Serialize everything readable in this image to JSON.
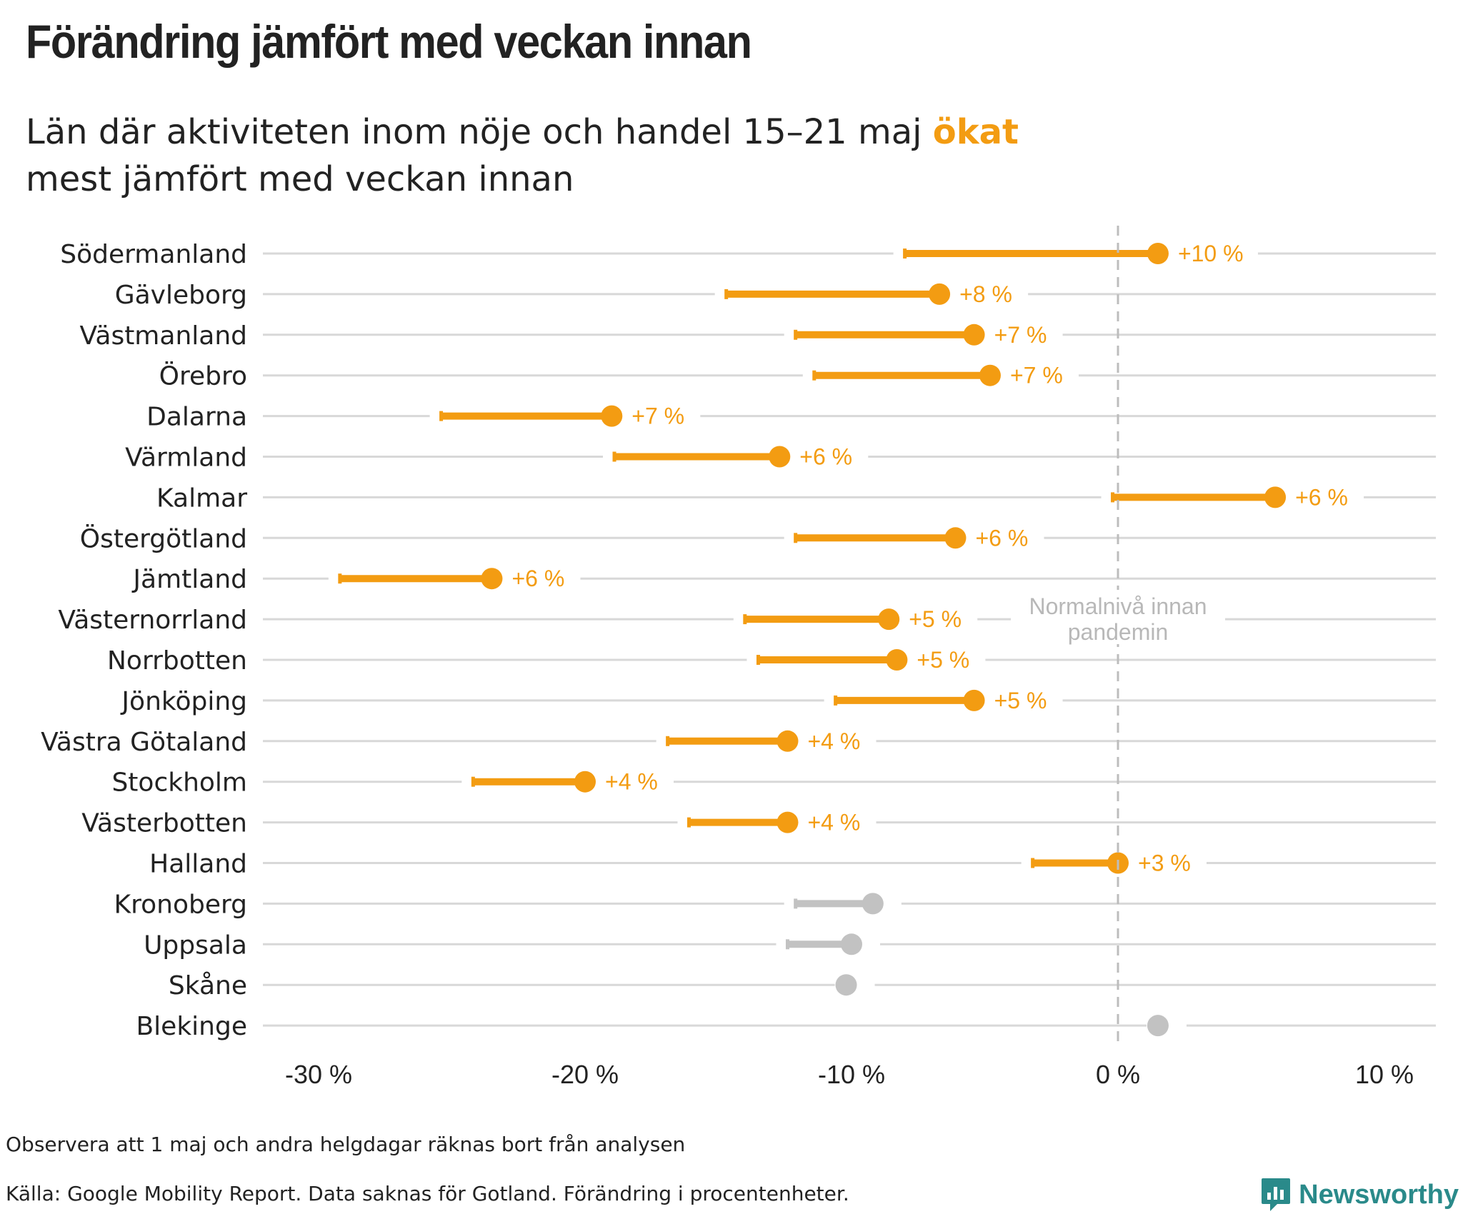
{
  "title": "Förändring jämfört med veckan innan",
  "subtitle": {
    "line1_prefix": "Län där aktiviteten inom nöje och handel 15–21 maj ",
    "highlight": "ökat",
    "line2": "mest jämfört med veckan innan"
  },
  "notes": {
    "note1": "Observera att 1 maj och andra helgdagar räknas bort från analysen",
    "source": "Källa: Google Mobility Report. Data saknas för Gotland. Förändring i procentenheter."
  },
  "brand": {
    "name": "Newsworthy",
    "icon": "newsworthy-logo-icon"
  },
  "colors": {
    "increase": "#f39c12",
    "neutral": "#c2c2c2",
    "grid": "#d8d8d8",
    "text": "#222222",
    "brand": "#2a8a8a"
  },
  "chart_data": {
    "type": "dumbbell",
    "x_axis": {
      "range": [
        -31,
        12
      ],
      "ticks": [
        -30,
        -20,
        -10,
        0,
        10
      ],
      "tick_labels": [
        "-30 %",
        "-20 %",
        "-10 %",
        "0 %",
        "10 %"
      ]
    },
    "reference_line": {
      "x": 0,
      "label_line1": "Normalnivå innan",
      "label_line2": "pandemin"
    },
    "rows": [
      {
        "name": "Södermanland",
        "from": -8.0,
        "to": 1.5,
        "label": "+10 %",
        "highlight": true
      },
      {
        "name": "Gävleborg",
        "from": -14.7,
        "to": -6.7,
        "label": "+8 %",
        "highlight": true
      },
      {
        "name": "Västmanland",
        "from": -12.1,
        "to": -5.4,
        "label": "+7 %",
        "highlight": true
      },
      {
        "name": "Örebro",
        "from": -11.4,
        "to": -4.8,
        "label": "+7 %",
        "highlight": true
      },
      {
        "name": "Dalarna",
        "from": -25.4,
        "to": -19.0,
        "label": "+7 %",
        "highlight": true
      },
      {
        "name": "Värmland",
        "from": -18.9,
        "to": -12.7,
        "label": "+6 %",
        "highlight": true
      },
      {
        "name": "Kalmar",
        "from": -0.2,
        "to": 5.9,
        "label": "+6 %",
        "highlight": true
      },
      {
        "name": "Östergötland",
        "from": -12.1,
        "to": -6.1,
        "label": "+6 %",
        "highlight": true
      },
      {
        "name": "Jämtland",
        "from": -29.2,
        "to": -23.5,
        "label": "+6 %",
        "highlight": true
      },
      {
        "name": "Västernorrland",
        "from": -14.0,
        "to": -8.6,
        "label": "+5 %",
        "highlight": true
      },
      {
        "name": "Norrbotten",
        "from": -13.5,
        "to": -8.3,
        "label": "+5 %",
        "highlight": true
      },
      {
        "name": "Jönköping",
        "from": -10.6,
        "to": -5.4,
        "label": "+5 %",
        "highlight": true
      },
      {
        "name": "Västra Götaland",
        "from": -16.9,
        "to": -12.4,
        "label": "+4 %",
        "highlight": true
      },
      {
        "name": "Stockholm",
        "from": -24.2,
        "to": -20.0,
        "label": "+4 %",
        "highlight": true
      },
      {
        "name": "Västerbotten",
        "from": -16.1,
        "to": -12.4,
        "label": "+4 %",
        "highlight": true
      },
      {
        "name": "Halland",
        "from": -3.2,
        "to": 0.0,
        "label": "+3 %",
        "highlight": true
      },
      {
        "name": "Kronoberg",
        "from": -12.1,
        "to": -9.2,
        "label": "",
        "highlight": false
      },
      {
        "name": "Uppsala",
        "from": -12.4,
        "to": -10.0,
        "label": "",
        "highlight": false
      },
      {
        "name": "Skåne",
        "from": -10.2,
        "to": -10.2,
        "label": "",
        "highlight": false
      },
      {
        "name": "Blekinge",
        "from": 1.5,
        "to": 1.5,
        "label": "",
        "highlight": false
      }
    ]
  }
}
